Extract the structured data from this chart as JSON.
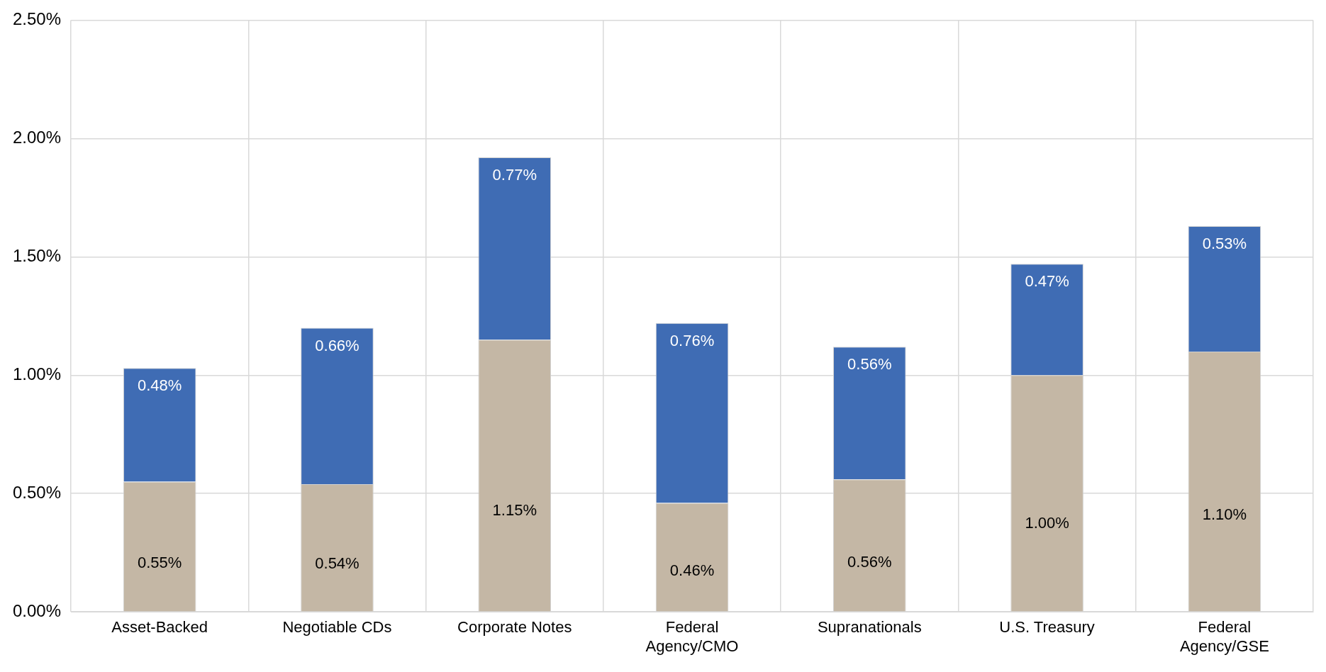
{
  "chart_data": {
    "type": "bar",
    "stacked": true,
    "categories": [
      "Asset-Backed",
      "Negotiable CDs",
      "Corporate Notes",
      "Federal Agency/CMO",
      "Supranationals",
      "U.S. Treasury",
      "Federal Agency/GSE"
    ],
    "series": [
      {
        "color": "#c4b7a5",
        "values": [
          0.55,
          0.54,
          1.15,
          0.46,
          0.56,
          1.0,
          1.1
        ],
        "value_labels": [
          "0.55%",
          "0.54%",
          "1.15%",
          "0.46%",
          "0.56%",
          "1.00%",
          "1.10%"
        ]
      },
      {
        "color": "#3f6cb4",
        "values": [
          0.48,
          0.66,
          0.77,
          0.76,
          0.56,
          0.47,
          0.53
        ],
        "value_labels": [
          "0.48%",
          "0.66%",
          "0.77%",
          "0.76%",
          "0.56%",
          "0.47%",
          "0.53%"
        ]
      }
    ],
    "ylim": [
      0,
      2.5
    ],
    "yticks": [
      {
        "value": 0,
        "label": "0.00%"
      },
      {
        "value": 0.5,
        "label": "0.50%"
      },
      {
        "value": 1,
        "label": "1.00%"
      },
      {
        "value": 1.5,
        "label": "1.50%"
      },
      {
        "value": 2,
        "label": "2.00%"
      },
      {
        "value": 2.5,
        "label": "2.50%"
      }
    ],
    "grid": true,
    "legend": false
  }
}
